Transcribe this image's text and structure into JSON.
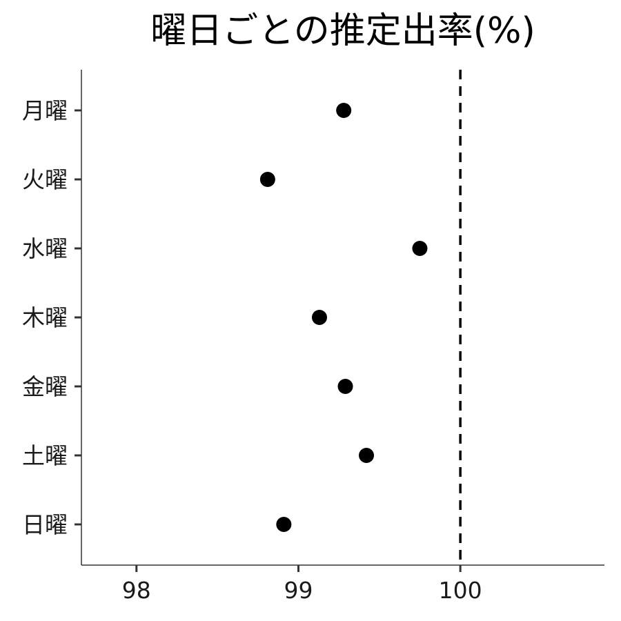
{
  "chart_data": {
    "type": "scatter",
    "title": "曜日ごとの推定出率(%)",
    "xlabel": "",
    "ylabel": "",
    "categories": [
      "月曜",
      "火曜",
      "水曜",
      "木曜",
      "金曜",
      "土曜",
      "日曜"
    ],
    "values": [
      99.28,
      98.81,
      99.75,
      99.13,
      99.29,
      99.42,
      98.91
    ],
    "xlim": [
      97.66,
      100.89
    ],
    "x_ticks": [
      "98",
      "99",
      "100"
    ],
    "reference_line": {
      "value": 100,
      "style": "dashed"
    },
    "grid": false,
    "legend": "none",
    "colors": {
      "point": "#000000",
      "axis": "#333333",
      "reference_line": "#000000"
    }
  }
}
